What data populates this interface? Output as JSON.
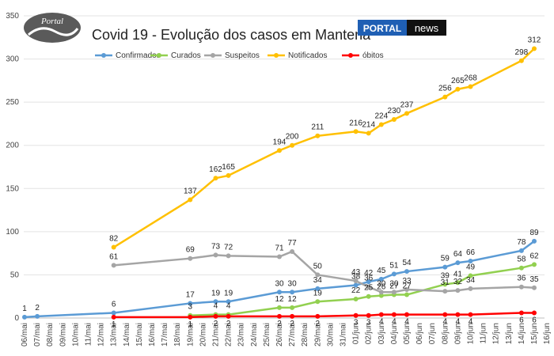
{
  "logo": {
    "text": "Portal"
  },
  "brand": {
    "left": "PORTAL",
    "right": "news"
  },
  "chart_data": {
    "type": "line",
    "title": "Covid 19 - Evolução dos casos em Mantena",
    "ylim": [
      0,
      350
    ],
    "yticks": [
      "0",
      "50",
      "100",
      "150",
      "200",
      "250",
      "300",
      "350"
    ],
    "grid": true,
    "legend_position": "top",
    "categories": [
      "06/mai",
      "07/mai",
      "08/mai",
      "09/mai",
      "10/mai",
      "11/mai",
      "12/mai",
      "13/mai",
      "14/mai",
      "15/mai",
      "16/mai",
      "17/mai",
      "18/mai",
      "19/mai",
      "20/mai",
      "21/mai",
      "22/mai",
      "23/mai",
      "24/mai",
      "25/mai",
      "26/mai",
      "27/mai",
      "28/mai",
      "29/mai",
      "30/mai",
      "31/mai",
      "01/jun",
      "02/jun",
      "03/jun",
      "04/jun",
      "05/jun",
      "06/jun",
      "07/jun",
      "08/jun",
      "09/jun",
      "10/jun",
      "11/jun",
      "12/jun",
      "13/jun",
      "14/jun",
      "15/jun",
      "16/jun"
    ],
    "series": [
      {
        "name": "Confirmados",
        "color": "#5b9bd5",
        "points": [
          [
            0,
            1
          ],
          [
            1,
            2
          ],
          [
            7,
            6
          ],
          [
            13,
            17
          ],
          [
            15,
            19
          ],
          [
            16,
            19
          ],
          [
            20,
            30
          ],
          [
            21,
            30
          ],
          [
            23,
            34
          ],
          [
            26,
            38
          ],
          [
            27,
            42
          ],
          [
            28,
            45
          ],
          [
            29,
            51
          ],
          [
            30,
            54
          ],
          [
            33,
            59
          ],
          [
            34,
            64
          ],
          [
            35,
            66
          ],
          [
            39,
            78
          ],
          [
            40,
            89
          ]
        ],
        "labels": [
          "1",
          "2",
          "6",
          "17",
          "19",
          "19",
          "30",
          "30",
          "34",
          "38",
          "42",
          "45",
          "51",
          "54",
          "59",
          "64",
          "66",
          "78",
          "89"
        ]
      },
      {
        "name": "Curados",
        "color": "#92d050",
        "points": [
          [
            13,
            3
          ],
          [
            15,
            4
          ],
          [
            16,
            4
          ],
          [
            20,
            12
          ],
          [
            21,
            12
          ],
          [
            23,
            19
          ],
          [
            26,
            22
          ],
          [
            27,
            25
          ],
          [
            28,
            26
          ],
          [
            29,
            27
          ],
          [
            30,
            27
          ],
          [
            33,
            39
          ],
          [
            34,
            41
          ],
          [
            35,
            49
          ],
          [
            39,
            58
          ],
          [
            40,
            62
          ]
        ],
        "labels": [
          "3",
          "4",
          "4",
          "12",
          "12",
          "19",
          "22",
          "25",
          "26",
          "27",
          "27",
          "39",
          "41",
          "49",
          "58",
          "62"
        ]
      },
      {
        "name": "Suspeitos",
        "color": "#a5a5a5",
        "points": [
          [
            7,
            61
          ],
          [
            13,
            69
          ],
          [
            15,
            73
          ],
          [
            16,
            72
          ],
          [
            20,
            71
          ],
          [
            21,
            77
          ],
          [
            23,
            50
          ],
          [
            26,
            43
          ],
          [
            27,
            36
          ],
          [
            28,
            30
          ],
          [
            29,
            30
          ],
          [
            30,
            33
          ],
          [
            33,
            31
          ],
          [
            34,
            32
          ],
          [
            35,
            34
          ],
          [
            39,
            36
          ],
          [
            40,
            35
          ]
        ],
        "labels": [
          "61",
          "69",
          "73",
          "72",
          "71",
          "77",
          "50",
          "43",
          "36",
          "30",
          "30",
          "33",
          "31",
          "32",
          "34",
          "36",
          "35"
        ]
      },
      {
        "name": "Notificados",
        "color": "#ffc000",
        "points": [
          [
            7,
            82
          ],
          [
            13,
            137
          ],
          [
            15,
            162
          ],
          [
            16,
            165
          ],
          [
            20,
            194
          ],
          [
            21,
            200
          ],
          [
            23,
            211
          ],
          [
            26,
            216
          ],
          [
            27,
            214
          ],
          [
            28,
            224
          ],
          [
            29,
            230
          ],
          [
            30,
            237
          ],
          [
            33,
            256
          ],
          [
            34,
            265
          ],
          [
            35,
            268
          ],
          [
            39,
            298
          ],
          [
            40,
            312
          ]
        ],
        "labels": [
          "82",
          "137",
          "162",
          "165",
          "194",
          "200",
          "211",
          "216",
          "214",
          "224",
          "230",
          "237",
          "256",
          "265",
          "268",
          "298",
          "312"
        ]
      },
      {
        "name": "óbitos",
        "color": "#ff0000",
        "points": [
          [
            7,
            1
          ],
          [
            13,
            1
          ],
          [
            15,
            2
          ],
          [
            16,
            2
          ],
          [
            20,
            2
          ],
          [
            21,
            2
          ],
          [
            23,
            2
          ],
          [
            26,
            3
          ],
          [
            27,
            3
          ],
          [
            28,
            4
          ],
          [
            29,
            4
          ],
          [
            30,
            4
          ],
          [
            33,
            4
          ],
          [
            34,
            4
          ],
          [
            35,
            4
          ],
          [
            39,
            6
          ],
          [
            40,
            6
          ]
        ],
        "labels": [
          "1",
          "1",
          "2",
          "2",
          "2",
          "2",
          "2",
          "3",
          "3",
          "4",
          "4",
          "4",
          "4",
          "4",
          "4",
          "6",
          "6"
        ]
      }
    ]
  }
}
